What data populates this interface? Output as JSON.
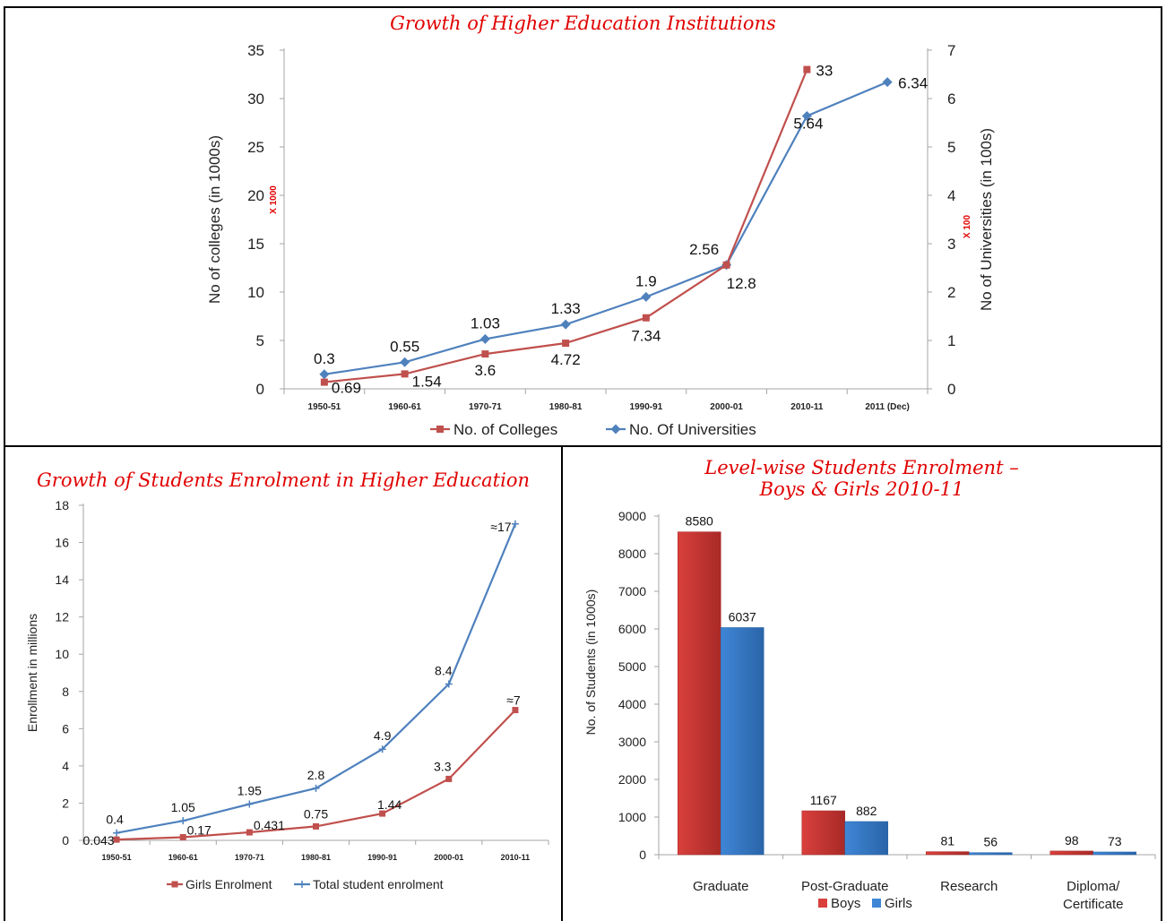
{
  "colors": {
    "red": "#c0504d",
    "blue": "#4f81bd",
    "title_red": "#e00000",
    "bar_red": "#d9403c",
    "bar_blue": "#3f86d6"
  },
  "chart_data": [
    {
      "type": "line",
      "title": "Growth of Higher Education Institutions",
      "categories": [
        "1950-51",
        "1960-61",
        "1970-71",
        "1980-81",
        "1990-91",
        "2000-01",
        "2010-11",
        "2011 (Dec)"
      ],
      "ylabel": "No of colleges (in 1000s)",
      "ylabel_multiplier": "X 1000",
      "y2label": "No of Universities (in 100s)",
      "y2label_multiplier": "X 100",
      "ylim": [
        0,
        35
      ],
      "y2lim": [
        0,
        7
      ],
      "yticks": [
        "0",
        "5",
        "10",
        "15",
        "20",
        "25",
        "30",
        "35"
      ],
      "y2ticks": [
        "0",
        "1",
        "2",
        "3",
        "4",
        "5",
        "6",
        "7"
      ],
      "legend_position": "bottom",
      "series": [
        {
          "name": "No. of Colleges",
          "axis": "left",
          "marker": "square",
          "values": [
            0.69,
            1.54,
            3.6,
            4.72,
            7.34,
            12.8,
            33,
            null
          ],
          "labels": [
            "0.69",
            "1.54",
            "3.6",
            "4.72",
            "7.34",
            "12.8",
            "33",
            ""
          ]
        },
        {
          "name": "No. Of Universities",
          "axis": "right",
          "marker": "diamond",
          "values": [
            0.3,
            0.55,
            1.03,
            1.33,
            1.9,
            2.56,
            5.64,
            6.34
          ],
          "labels": [
            "0.3",
            "0.55",
            "1.03",
            "1.33",
            "1.9",
            "2.56",
            "5.64",
            "6.34"
          ]
        }
      ]
    },
    {
      "type": "line",
      "title": "Growth of Students Enrolment in Higher Education",
      "categories": [
        "1950-51",
        "1960-61",
        "1970-71",
        "1980-81",
        "1990-91",
        "2000-01",
        "2010-11"
      ],
      "ylabel": "Enrollment in millions",
      "ylim": [
        0,
        18
      ],
      "yticks": [
        "0",
        "2",
        "4",
        "6",
        "8",
        "10",
        "12",
        "14",
        "16",
        "18"
      ],
      "legend_position": "bottom",
      "series": [
        {
          "name": "Girls Enrolment",
          "marker": "square",
          "values": [
            0.043,
            0.17,
            0.431,
            0.75,
            1.44,
            3.3,
            7
          ],
          "labels": [
            "0.043",
            "0.17",
            "0.431",
            "0.75",
            "1.44",
            "3.3",
            "≈7"
          ]
        },
        {
          "name": "Total student enrolment",
          "marker": "cross",
          "values": [
            0.4,
            1.05,
            1.95,
            2.8,
            4.9,
            8.4,
            17
          ],
          "labels": [
            "0.4",
            "1.05",
            "1.95",
            "2.8",
            "4.9",
            "8.4",
            "≈17"
          ]
        }
      ]
    },
    {
      "type": "bar",
      "title": "Level-wise Students Enrolment –\nBoys & Girls 2010-11",
      "categories": [
        "Graduate",
        "Post-Graduate",
        "Research",
        "Diploma/\nCertificate"
      ],
      "ylabel": "No. of Students (in 1000s)",
      "ylim": [
        0,
        9000
      ],
      "yticks": [
        "0",
        "1000",
        "2000",
        "3000",
        "4000",
        "5000",
        "6000",
        "7000",
        "8000",
        "9000"
      ],
      "legend_position": "bottom",
      "series": [
        {
          "name": "Boys",
          "values": [
            8580,
            1167,
            81,
            98
          ],
          "labels": [
            "8580",
            "1167",
            "81",
            "98"
          ]
        },
        {
          "name": "Girls",
          "values": [
            6037,
            882,
            56,
            73
          ],
          "labels": [
            "6037",
            "882",
            "56",
            "73"
          ]
        }
      ]
    }
  ]
}
